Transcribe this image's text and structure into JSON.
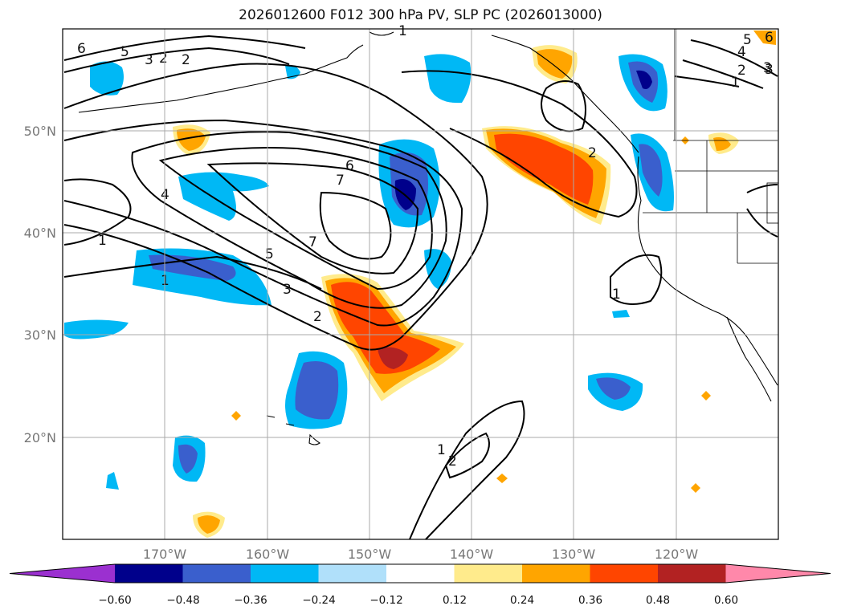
{
  "title": "2026012600 F012 300 hPa PV, SLP PC (2026013000)",
  "lat_labels": [
    "50°N",
    "40°N",
    "30°N",
    "20°N"
  ],
  "lon_labels": [
    "170°W",
    "160°W",
    "150°W",
    "140°W",
    "130°W",
    "120°W"
  ],
  "colorbar": {
    "ticks": [
      "−0.60",
      "−0.48",
      "−0.36",
      "−0.24",
      "−0.12",
      "0.12",
      "0.24",
      "0.36",
      "0.48",
      "0.60"
    ],
    "colors": [
      "#9b30d0",
      "#00008b",
      "#3a5fcd",
      "#00b8f5",
      "#b0e0fa",
      "#ffffff",
      "#ffeb8c",
      "#ffa500",
      "#ff4500",
      "#b22222",
      "#ff88aa"
    ]
  },
  "contour_labels": [
    "6",
    "5",
    "3",
    "2",
    "6",
    "7",
    "4",
    "1",
    "7",
    "5",
    "1",
    "3",
    "2",
    "3",
    "2",
    "1",
    "4",
    "5",
    "3",
    "2",
    "1",
    "2",
    "1",
    "1",
    "6",
    "2"
  ],
  "pv_colors": {
    "neg_light": "#00b8f5",
    "neg_mid": "#3a5fcd",
    "neg_dark": "#00008b",
    "pos_light": "#ffeb8c",
    "pos_mid": "#ffa500",
    "pos_strong": "#ff4500",
    "pos_dark": "#b22222"
  }
}
